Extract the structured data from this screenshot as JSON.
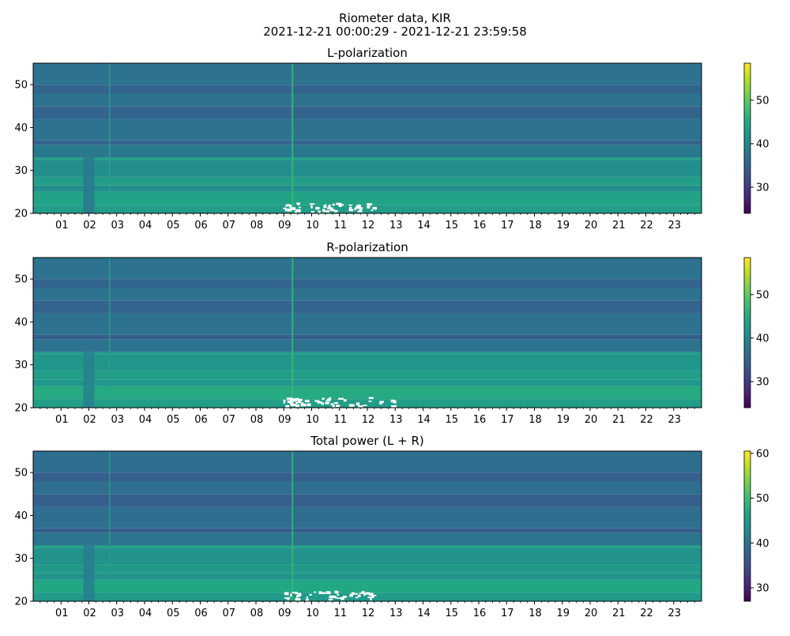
{
  "figure": {
    "title_line1": "Riometer data, KIR",
    "title_line2": "2021-12-21 00:00:29 - 2021-12-21 23:59:58"
  },
  "colormap": {
    "name": "viridis",
    "stops": [
      "#440154",
      "#482475",
      "#414487",
      "#355f8d",
      "#2a788e",
      "#21918c",
      "#22a884",
      "#44bf70",
      "#7ad151",
      "#bddf26",
      "#fde725"
    ]
  },
  "chart_data": [
    {
      "type": "heatmap",
      "title": "L-polarization",
      "xlabel": "",
      "ylabel": "",
      "x_ticks": [
        "01",
        "02",
        "03",
        "04",
        "05",
        "06",
        "07",
        "08",
        "09",
        "10",
        "11",
        "12",
        "13",
        "14",
        "15",
        "16",
        "17",
        "18",
        "19",
        "20",
        "21",
        "22",
        "23"
      ],
      "xlim": [
        0,
        24
      ],
      "ylim": [
        20,
        55
      ],
      "y_ticks": [
        20,
        30,
        40,
        50
      ],
      "colorbar": {
        "vmin": 24,
        "vmax": 58.5,
        "ticks": [
          30,
          40,
          50
        ]
      },
      "bands": [
        {
          "y0": 20,
          "y1": 22,
          "value": 43
        },
        {
          "y0": 22,
          "y1": 25,
          "value": 44
        },
        {
          "y0": 25,
          "y1": 26.5,
          "value": 41
        },
        {
          "y0": 26.5,
          "y1": 28.5,
          "value": 43
        },
        {
          "y0": 28.5,
          "y1": 32.5,
          "value": 41
        },
        {
          "y0": 32.5,
          "y1": 33,
          "value": 44
        },
        {
          "y0": 33,
          "y1": 36,
          "value": 38
        },
        {
          "y0": 36,
          "y1": 37,
          "value": 35
        },
        {
          "y0": 37,
          "y1": 42,
          "value": 37
        },
        {
          "y0": 42,
          "y1": 45,
          "value": 35
        },
        {
          "y0": 45,
          "y1": 48,
          "value": 37
        },
        {
          "y0": 48,
          "y1": 50,
          "value": 35
        },
        {
          "y0": 50,
          "y1": 55,
          "value": 37
        }
      ],
      "time_features": [
        {
          "t0": 1.8,
          "t1": 2.2,
          "y0": 20,
          "y1": 33,
          "value": 38
        },
        {
          "t0": 2.72,
          "t1": 2.77,
          "y0": 20,
          "y1": 55,
          "value": 44
        },
        {
          "t0": 9.28,
          "t1": 9.34,
          "y0": 20,
          "y1": 55,
          "value": 47
        }
      ],
      "saturated_region": {
        "t0": 8.95,
        "t1": 12.6,
        "y0": 20.5,
        "y1": 22.5
      }
    },
    {
      "type": "heatmap",
      "title": "R-polarization",
      "xlabel": "",
      "ylabel": "",
      "x_ticks": [
        "01",
        "02",
        "03",
        "04",
        "05",
        "06",
        "07",
        "08",
        "09",
        "10",
        "11",
        "12",
        "13",
        "14",
        "15",
        "16",
        "17",
        "18",
        "19",
        "20",
        "21",
        "22",
        "23"
      ],
      "xlim": [
        0,
        24
      ],
      "ylim": [
        20,
        55
      ],
      "y_ticks": [
        20,
        30,
        40,
        50
      ],
      "colorbar": {
        "vmin": 24,
        "vmax": 58.5,
        "ticks": [
          30,
          40,
          50
        ]
      },
      "bands": [
        {
          "y0": 20,
          "y1": 22,
          "value": 43
        },
        {
          "y0": 22,
          "y1": 25,
          "value": 45
        },
        {
          "y0": 25,
          "y1": 26.5,
          "value": 42
        },
        {
          "y0": 26.5,
          "y1": 28.5,
          "value": 43
        },
        {
          "y0": 28.5,
          "y1": 32.5,
          "value": 42
        },
        {
          "y0": 32.5,
          "y1": 33,
          "value": 43
        },
        {
          "y0": 33,
          "y1": 36,
          "value": 37
        },
        {
          "y0": 36,
          "y1": 37,
          "value": 34
        },
        {
          "y0": 37,
          "y1": 42,
          "value": 37
        },
        {
          "y0": 42,
          "y1": 45,
          "value": 35
        },
        {
          "y0": 45,
          "y1": 48,
          "value": 37
        },
        {
          "y0": 48,
          "y1": 50,
          "value": 35
        },
        {
          "y0": 50,
          "y1": 55,
          "value": 37
        }
      ],
      "time_features": [
        {
          "t0": 1.8,
          "t1": 2.2,
          "y0": 20,
          "y1": 33,
          "value": 39
        },
        {
          "t0": 2.72,
          "t1": 2.77,
          "y0": 20,
          "y1": 55,
          "value": 44
        },
        {
          "t0": 9.28,
          "t1": 9.34,
          "y0": 20,
          "y1": 55,
          "value": 47
        }
      ],
      "saturated_region": {
        "t0": 8.95,
        "t1": 13.0,
        "y0": 20.5,
        "y1": 22.5
      }
    },
    {
      "type": "heatmap",
      "title": "Total power (L + R)",
      "xlabel": "",
      "ylabel": "",
      "x_ticks": [
        "01",
        "02",
        "03",
        "04",
        "05",
        "06",
        "07",
        "08",
        "09",
        "10",
        "11",
        "12",
        "13",
        "14",
        "15",
        "16",
        "17",
        "18",
        "19",
        "20",
        "21",
        "22",
        "23"
      ],
      "xlim": [
        0,
        24
      ],
      "ylim": [
        20,
        55
      ],
      "y_ticks": [
        20,
        30,
        40,
        50
      ],
      "colorbar": {
        "vmin": 27,
        "vmax": 60.5,
        "ticks": [
          30,
          40,
          50,
          60
        ]
      },
      "bands": [
        {
          "y0": 20,
          "y1": 22,
          "value": 45
        },
        {
          "y0": 22,
          "y1": 25,
          "value": 47
        },
        {
          "y0": 25,
          "y1": 26.5,
          "value": 44
        },
        {
          "y0": 26.5,
          "y1": 28.5,
          "value": 45
        },
        {
          "y0": 28.5,
          "y1": 32.5,
          "value": 44
        },
        {
          "y0": 32.5,
          "y1": 33,
          "value": 46
        },
        {
          "y0": 33,
          "y1": 36,
          "value": 40
        },
        {
          "y0": 36,
          "y1": 37,
          "value": 37
        },
        {
          "y0": 37,
          "y1": 42,
          "value": 39
        },
        {
          "y0": 42,
          "y1": 45,
          "value": 37
        },
        {
          "y0": 45,
          "y1": 48,
          "value": 39
        },
        {
          "y0": 48,
          "y1": 50,
          "value": 37
        },
        {
          "y0": 50,
          "y1": 55,
          "value": 39
        }
      ],
      "time_features": [
        {
          "t0": 1.8,
          "t1": 2.2,
          "y0": 20,
          "y1": 33,
          "value": 41
        },
        {
          "t0": 2.72,
          "t1": 2.77,
          "y0": 20,
          "y1": 55,
          "value": 46
        },
        {
          "t0": 9.28,
          "t1": 9.34,
          "y0": 20,
          "y1": 55,
          "value": 49
        }
      ],
      "saturated_region": {
        "t0": 8.95,
        "t1": 12.6,
        "y0": 20.5,
        "y1": 22.5
      }
    }
  ]
}
